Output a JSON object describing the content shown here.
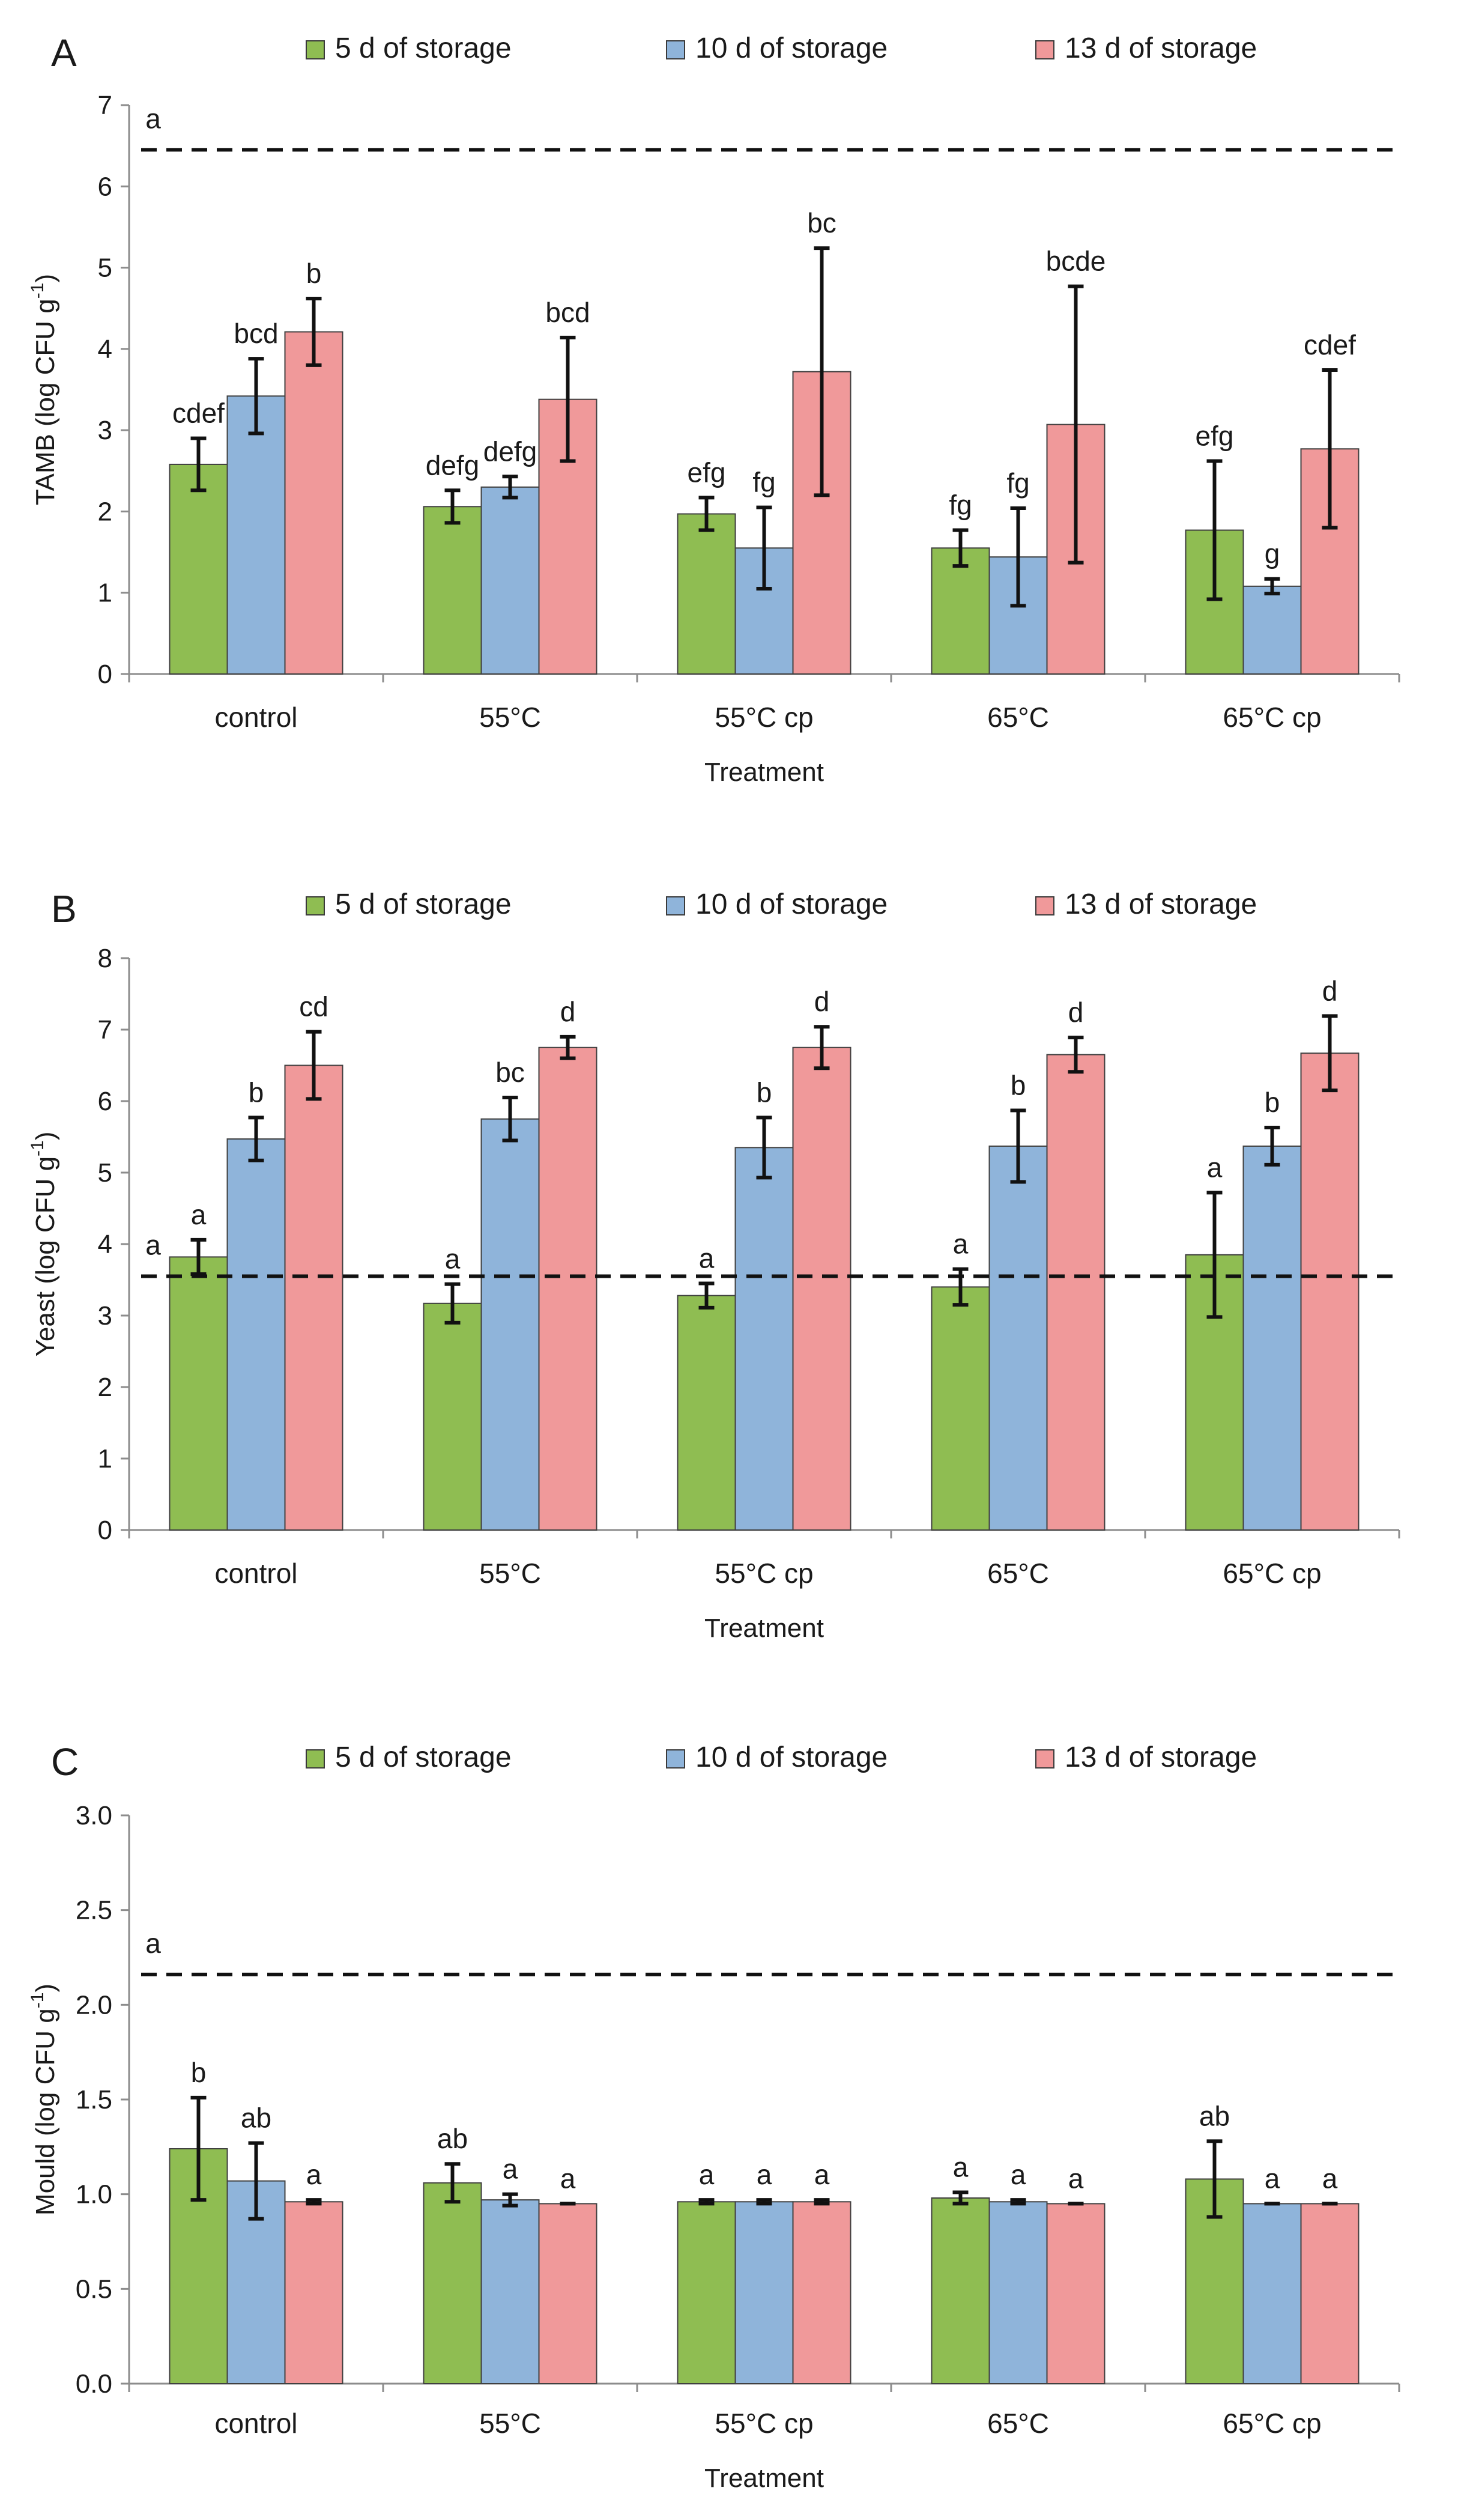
{
  "colors": {
    "s5": "#8fbd52",
    "s10": "#8fb4da",
    "s13": "#f0999a",
    "axis": "#8c8c8c",
    "ink": "#1a1a1a"
  },
  "series_names": [
    "5 d of storage",
    "10 d of storage",
    "13 d of storage"
  ],
  "xlabel": "Treatment",
  "chart_data": [
    {
      "type": "bar",
      "panel": "A",
      "categories": [
        "control",
        "55°C",
        "55°C cp",
        "65°C",
        "65°C cp"
      ],
      "xlabel": "Treatment",
      "ylabel_main": "TAMB (log CFU g",
      "ylabel_sup": "-1",
      "ylabel_end": ")",
      "ylim": [
        0,
        7
      ],
      "yticks": [
        0,
        1,
        2,
        3,
        4,
        5,
        6,
        7
      ],
      "ytick_labels": [
        "0",
        "1",
        "2",
        "3",
        "4",
        "5",
        "6",
        "7"
      ],
      "reference_line": {
        "value": 6.45,
        "label": "a"
      },
      "series": [
        {
          "name": "5 d of storage",
          "values": [
            2.58,
            2.06,
            1.97,
            1.55,
            1.77
          ],
          "errors": [
            0.32,
            0.2,
            0.2,
            0.22,
            0.85
          ],
          "labels": [
            "cdef",
            "defg",
            "efg",
            "fg",
            "efg"
          ]
        },
        {
          "name": "10 d of storage",
          "values": [
            3.42,
            2.3,
            1.55,
            1.44,
            1.08
          ],
          "errors": [
            0.46,
            0.13,
            0.5,
            0.6,
            0.09
          ],
          "labels": [
            "bcd",
            "defg",
            "fg",
            "fg",
            "g"
          ]
        },
        {
          "name": "13 d of storage",
          "values": [
            4.21,
            3.38,
            3.72,
            3.07,
            2.77
          ],
          "errors": [
            0.41,
            0.76,
            1.52,
            1.7,
            0.97
          ],
          "labels": [
            "b",
            "bcd",
            "bc",
            "bcde",
            "cdef"
          ]
        }
      ]
    },
    {
      "type": "bar",
      "panel": "B",
      "categories": [
        "control",
        "55°C",
        "55°C cp",
        "65°C",
        "65°C cp"
      ],
      "xlabel": "Treatment",
      "ylabel_main": "Yeast (log CFU g",
      "ylabel_sup": "-1",
      "ylabel_end": ")",
      "ylim": [
        0,
        8
      ],
      "yticks": [
        0,
        1,
        2,
        3,
        4,
        5,
        6,
        7,
        8
      ],
      "ytick_labels": [
        "0",
        "1",
        "2",
        "3",
        "4",
        "5",
        "6",
        "7",
        "8"
      ],
      "reference_line": {
        "value": 3.55,
        "label": "a"
      },
      "series": [
        {
          "name": "5 d of storage",
          "values": [
            3.82,
            3.17,
            3.28,
            3.4,
            3.85
          ],
          "errors": [
            0.24,
            0.27,
            0.17,
            0.25,
            0.87
          ],
          "labels": [
            "a",
            "a",
            "a",
            "a",
            "a"
          ]
        },
        {
          "name": "10 d of storage",
          "values": [
            5.47,
            5.75,
            5.35,
            5.37,
            5.37
          ],
          "errors": [
            0.3,
            0.3,
            0.42,
            0.5,
            0.26
          ],
          "labels": [
            "b",
            "bc",
            "b",
            "b",
            "b"
          ]
        },
        {
          "name": "13 d of storage",
          "values": [
            6.5,
            6.75,
            6.75,
            6.65,
            6.67
          ],
          "errors": [
            0.47,
            0.15,
            0.29,
            0.24,
            0.52
          ],
          "labels": [
            "cd",
            "d",
            "d",
            "d",
            "d"
          ]
        }
      ]
    },
    {
      "type": "bar",
      "panel": "C",
      "categories": [
        "control",
        "55°C",
        "55°C cp",
        "65°C",
        "65°C cp"
      ],
      "xlabel": "Treatment",
      "ylabel_main": "Mould (log CFU g",
      "ylabel_sup": "-1",
      "ylabel_end": ")",
      "ylim": [
        0,
        3
      ],
      "yticks": [
        0,
        0.5,
        1,
        1.5,
        2,
        2.5,
        3
      ],
      "ytick_labels": [
        "0.0",
        "0.5",
        "1.0",
        "1.5",
        "2.0",
        "2.5",
        "3.0"
      ],
      "reference_line": {
        "value": 2.16,
        "label": "a"
      },
      "series": [
        {
          "name": "5 d of storage",
          "values": [
            1.24,
            1.06,
            0.96,
            0.98,
            1.08
          ],
          "errors": [
            0.27,
            0.1,
            0.01,
            0.03,
            0.2
          ],
          "labels": [
            "b",
            "ab",
            "a",
            "a",
            "ab"
          ]
        },
        {
          "name": "10 d of storage",
          "values": [
            1.07,
            0.97,
            0.96,
            0.96,
            0.95
          ],
          "errors": [
            0.2,
            0.03,
            0.01,
            0.01,
            0.0
          ],
          "labels": [
            "ab",
            "a",
            "a",
            "a",
            "a"
          ]
        },
        {
          "name": "13 d of storage",
          "values": [
            0.96,
            0.95,
            0.96,
            0.95,
            0.95
          ],
          "errors": [
            0.01,
            0.0,
            0.01,
            0.0,
            0.0
          ],
          "labels": [
            "a",
            "a",
            "a",
            "a",
            "a"
          ]
        }
      ]
    }
  ]
}
